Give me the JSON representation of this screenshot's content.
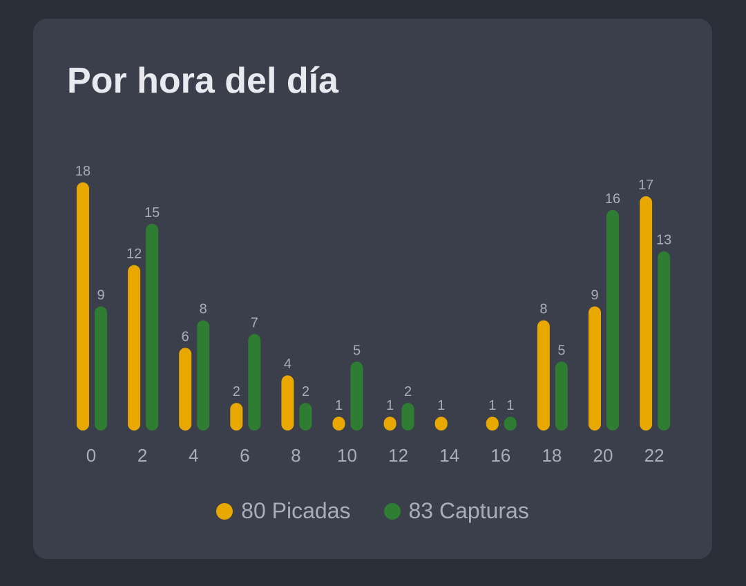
{
  "chart_data": {
    "type": "bar",
    "title": "Por hora del día",
    "categories": [
      "0",
      "2",
      "4",
      "6",
      "8",
      "10",
      "12",
      "14",
      "16",
      "18",
      "20",
      "22"
    ],
    "series": [
      {
        "name": "Picadas",
        "legend_label": "80 Picadas",
        "color": "#e8a800",
        "values": [
          18,
          12,
          6,
          2,
          4,
          1,
          1,
          1,
          1,
          8,
          9,
          17
        ]
      },
      {
        "name": "Capturas",
        "legend_label": "83 Capturas",
        "color": "#2e7d32",
        "values": [
          9,
          15,
          8,
          7,
          2,
          5,
          2,
          0,
          1,
          5,
          16,
          13
        ]
      }
    ],
    "ylim": [
      0,
      18
    ],
    "grid": false,
    "legend_position": "bottom",
    "data_labels": true
  }
}
